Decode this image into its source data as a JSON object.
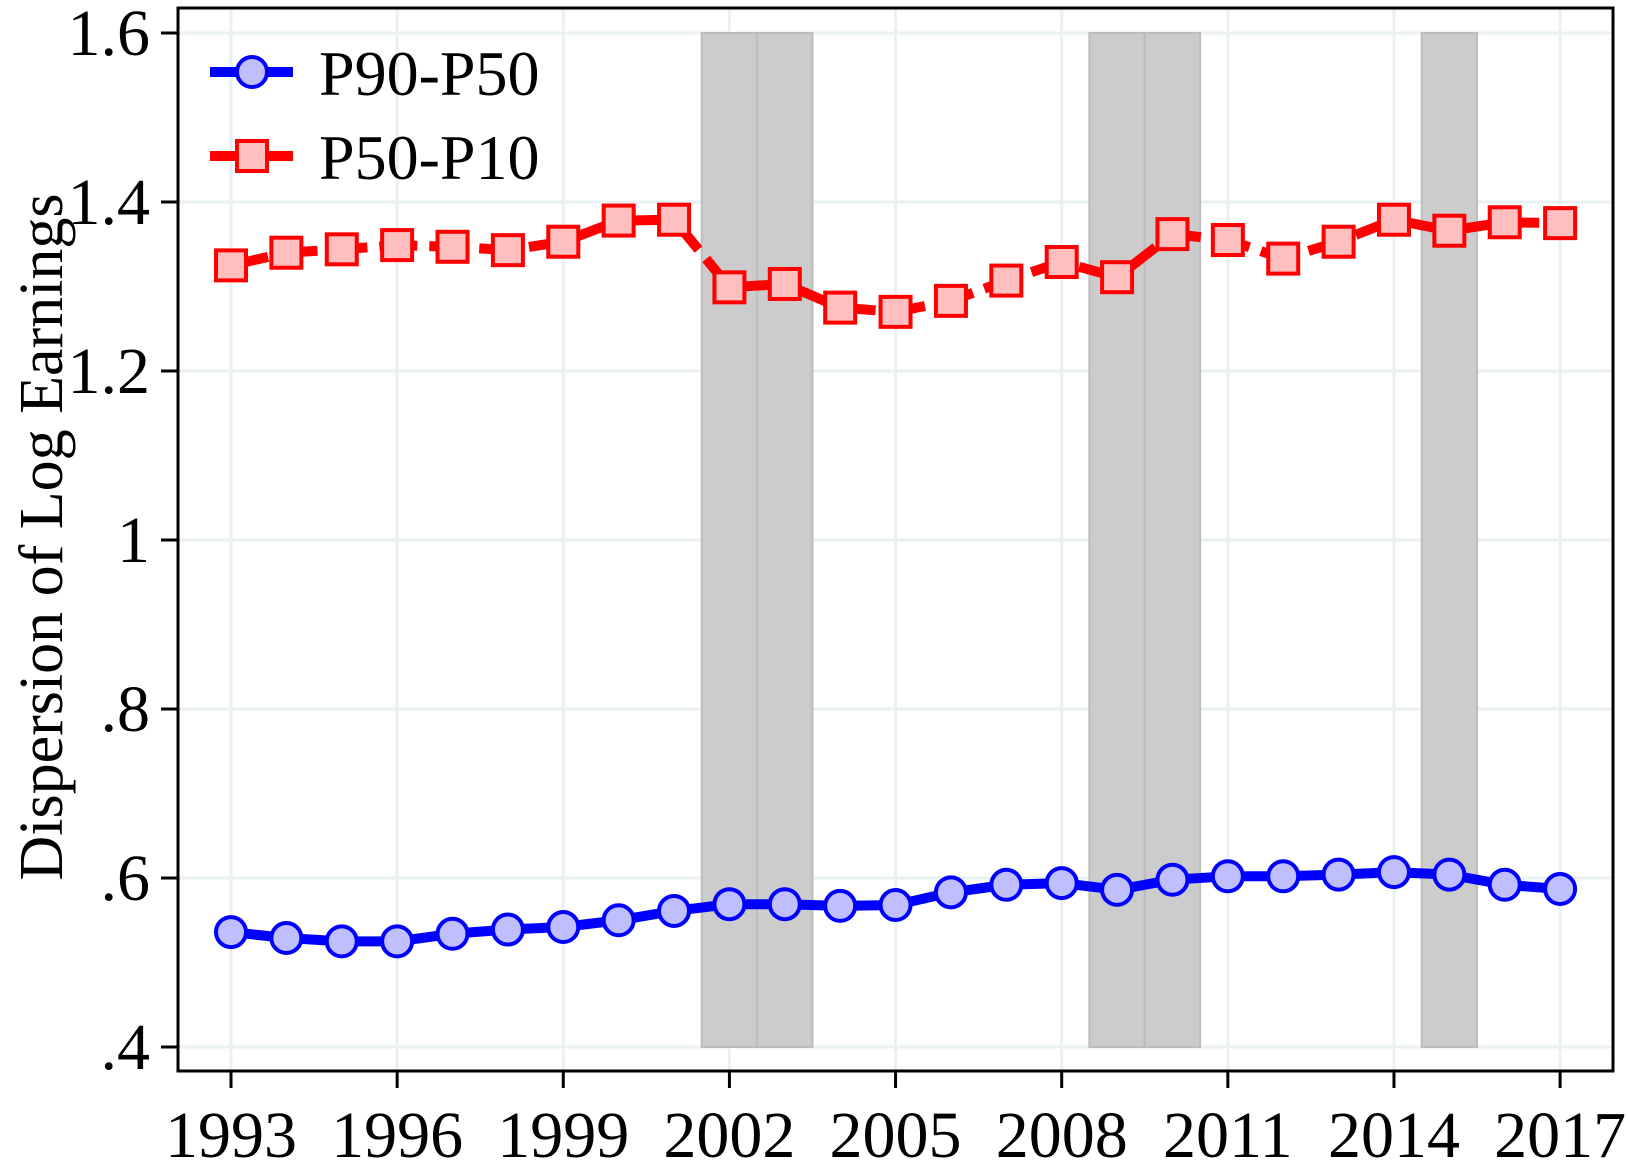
{
  "chart_data": {
    "type": "line",
    "title": "",
    "xlabel": "",
    "ylabel": "Dispersion of Log Earnings",
    "x": [
      1993,
      1994,
      1995,
      1996,
      1997,
      1998,
      1999,
      2000,
      2001,
      2002,
      2003,
      2004,
      2005,
      2006,
      2007,
      2008,
      2009,
      2010,
      2011,
      2012,
      2013,
      2014,
      2015,
      2016,
      2017
    ],
    "xticks": [
      1993,
      1996,
      1999,
      2002,
      2005,
      2008,
      2011,
      2014,
      2017
    ],
    "xtick_labels": [
      "1993",
      "1996",
      "1999",
      "2002",
      "2005",
      "2008",
      "2011",
      "2014",
      "2017"
    ],
    "yticks": [
      0.4,
      0.6,
      0.8,
      1.0,
      1.2,
      1.4,
      1.6
    ],
    "ytick_labels": [
      ".4",
      ".6",
      ".8",
      "1",
      "1.2",
      "1.4",
      "1.6"
    ],
    "xlim": [
      1990.4,
      2018.0
    ],
    "ylim": [
      0.37,
      1.63
    ],
    "grid": true,
    "legend_position": "upper left, inside",
    "series": [
      {
        "name": "P90-P50",
        "color": "#0000ff",
        "marker": "circle",
        "marker_fill": "#bfbfff",
        "line_style": "solid",
        "values": [
          0.536,
          0.529,
          0.525,
          0.525,
          0.534,
          0.539,
          0.542,
          0.55,
          0.561,
          0.569,
          0.569,
          0.567,
          0.568,
          0.583,
          0.592,
          0.594,
          0.586,
          0.598,
          0.602,
          0.602,
          0.604,
          0.607,
          0.604,
          0.592,
          0.587
        ]
      },
      {
        "name": "P50-P10",
        "color": "#ff0000",
        "marker": "square",
        "marker_fill": "#ffbfbf",
        "line_style": "dashed",
        "values": [
          1.325,
          1.34,
          1.344,
          1.349,
          1.347,
          1.343,
          1.353,
          1.378,
          1.379,
          1.299,
          1.303,
          1.275,
          1.27,
          1.283,
          1.307,
          1.329,
          1.311,
          1.362,
          1.355,
          1.333,
          1.353,
          1.379,
          1.366,
          1.376,
          1.375
        ]
      }
    ],
    "shaded_regions": [
      {
        "x0": 2001.5,
        "x1": 2002.5,
        "y0": 0.4,
        "y1": 1.6
      },
      {
        "x0": 2002.5,
        "x1": 2003.5,
        "y0": 0.4,
        "y1": 1.6
      },
      {
        "x0": 2008.5,
        "x1": 2009.5,
        "y0": 0.4,
        "y1": 1.6
      },
      {
        "x0": 2009.5,
        "x1": 2010.5,
        "y0": 0.4,
        "y1": 1.6
      },
      {
        "x0": 2014.5,
        "x1": 2015.5,
        "y0": 0.4,
        "y1": 1.6
      }
    ],
    "colors": {
      "shade_fill": "#cccccc",
      "shade_edge": "#bdbdbd",
      "grid": "#e9f1f3",
      "axis": "#000000"
    }
  }
}
